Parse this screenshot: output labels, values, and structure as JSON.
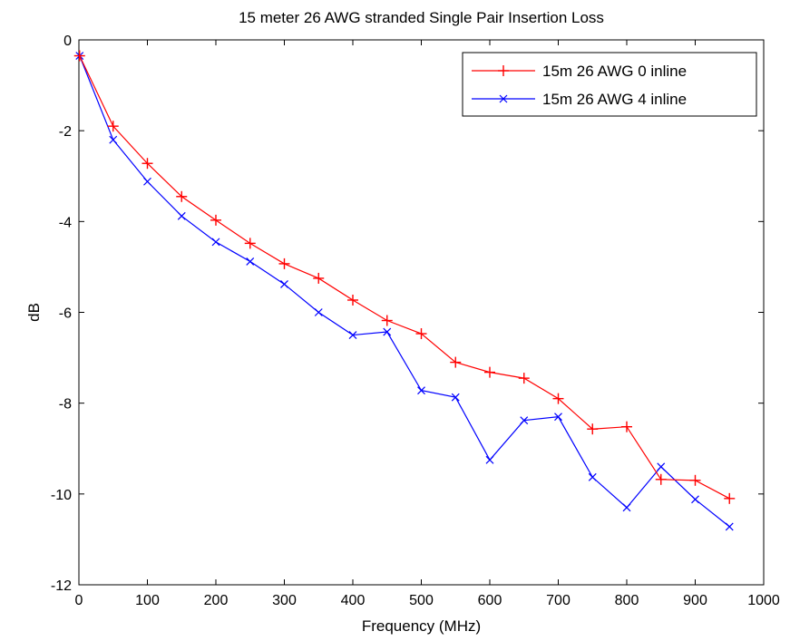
{
  "chart_data": {
    "type": "line",
    "title": "15 meter 26 AWG stranded Single Pair Insertion Loss",
    "xlabel": "Frequency (MHz)",
    "ylabel": "dB",
    "xlim": [
      0,
      1000
    ],
    "ylim": [
      -12,
      0
    ],
    "xticks": [
      0,
      100,
      200,
      300,
      400,
      500,
      600,
      700,
      800,
      900,
      1000
    ],
    "yticks": [
      0,
      -2,
      -4,
      -6,
      -8,
      -10,
      -12
    ],
    "xtick_labels": [
      "0",
      "100",
      "200",
      "300",
      "400",
      "500",
      "600",
      "700",
      "800",
      "900",
      "1000"
    ],
    "ytick_labels": [
      "0",
      "-2",
      "-4",
      "-6",
      "-8",
      "-10",
      "-12"
    ],
    "grid": false,
    "legend_position": "top-right",
    "x": [
      1,
      50,
      100,
      150,
      200,
      250,
      300,
      350,
      400,
      450,
      500,
      550,
      600,
      650,
      700,
      750,
      800,
      850,
      900,
      950
    ],
    "series": [
      {
        "name": "15m 26 AWG 0 inline",
        "color": "#ff0000",
        "marker": "plus",
        "values": [
          -0.35,
          -1.9,
          -2.72,
          -3.45,
          -3.97,
          -4.48,
          -4.93,
          -5.25,
          -5.73,
          -6.18,
          -6.47,
          -7.1,
          -7.32,
          -7.45,
          -7.9,
          -8.57,
          -8.52,
          -9.68,
          -9.7,
          -10.1
        ]
      },
      {
        "name": "15m 26 AWG 4 inline",
        "color": "#0000ff",
        "marker": "x",
        "values": [
          -0.35,
          -2.2,
          -3.12,
          -3.88,
          -4.45,
          -4.88,
          -5.38,
          -6.0,
          -6.5,
          -6.43,
          -7.72,
          -7.87,
          -9.25,
          -8.38,
          -8.3,
          -9.63,
          -10.3,
          -9.4,
          -10.12,
          -10.72
        ]
      }
    ]
  }
}
